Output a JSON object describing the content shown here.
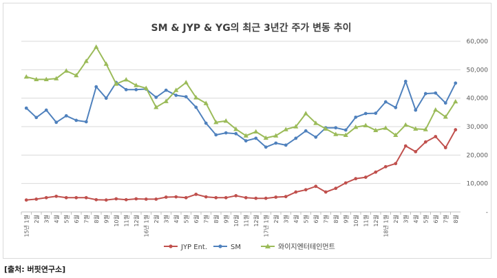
{
  "source_note": "[출처: 버핏연구소]",
  "chart_data": {
    "type": "line",
    "title": "SM & JYP & YG의 최근 3년간 주가 변동 추이",
    "xlabel": "",
    "ylabel": "",
    "ylim": [
      0,
      60000
    ],
    "yticks": [
      "-",
      "10,000",
      "20,000",
      "30,000",
      "40,000",
      "50,000",
      "60,000"
    ],
    "ytick_values": [
      0,
      10000,
      20000,
      30000,
      40000,
      50000,
      60000
    ],
    "grid": true,
    "legend_position": "bottom",
    "categories": [
      "15년 1월",
      "2월",
      "3월",
      "4월",
      "5월",
      "6월",
      "7월",
      "8월",
      "9월",
      "10월",
      "11월",
      "12월",
      "16년 1월",
      "2월",
      "3월",
      "4월",
      "5월",
      "6월",
      "7월",
      "8월",
      "9월",
      "10월",
      "11월",
      "12월",
      "17년 1월",
      "2월",
      "3월",
      "4월",
      "5월",
      "6월",
      "7월",
      "8월",
      "9월",
      "10월",
      "11월",
      "12월",
      "18년 1월",
      "2월",
      "3월",
      "4월",
      "5월",
      "6월",
      "7월",
      "8월"
    ],
    "series": [
      {
        "name": "JYP Ent.",
        "color": "#c0504d",
        "marker": "circle",
        "values": [
          4200,
          4500,
          5000,
          5500,
          5000,
          5000,
          5000,
          4300,
          4200,
          4600,
          4300,
          4600,
          4500,
          4500,
          5200,
          5300,
          5000,
          6200,
          5300,
          5000,
          5000,
          5700,
          5000,
          4800,
          4800,
          5200,
          5400,
          7000,
          7800,
          9000,
          7000,
          8300,
          10200,
          11700,
          12200,
          14000,
          15900,
          17000,
          23200,
          21200,
          24600,
          26500,
          22600,
          28900
        ]
      },
      {
        "name": "SM",
        "color": "#4f81bd",
        "marker": "circle",
        "values": [
          36500,
          33200,
          35800,
          31500,
          33800,
          32200,
          31700,
          44000,
          40000,
          45500,
          43000,
          43000,
          43200,
          40300,
          42800,
          41000,
          40500,
          36800,
          31200,
          27100,
          27800,
          27500,
          25000,
          25900,
          22800,
          24200,
          23500,
          25900,
          28500,
          26300,
          29600,
          29600,
          28800,
          33300,
          34600,
          34700,
          38700,
          36700,
          45900,
          35800,
          41600,
          41800,
          38300,
          45300
        ]
      },
      {
        "name": "와이지엔터테인먼트",
        "color": "#9bbb59",
        "marker": "triangle",
        "values": [
          47500,
          46600,
          46600,
          46900,
          49600,
          48000,
          53000,
          58000,
          52000,
          45000,
          46500,
          44500,
          43500,
          36800,
          38900,
          42800,
          45500,
          40200,
          38200,
          31500,
          32000,
          29100,
          26800,
          28200,
          26000,
          26800,
          29000,
          30000,
          34600,
          31200,
          29200,
          27300,
          27000,
          29800,
          30400,
          28700,
          29500,
          27000,
          30600,
          29200,
          29000,
          35900,
          33400,
          38800
        ]
      }
    ]
  }
}
